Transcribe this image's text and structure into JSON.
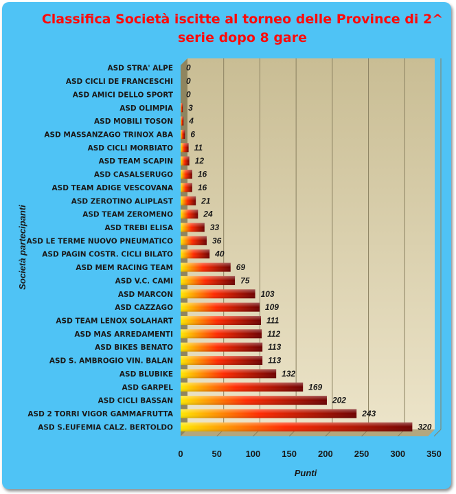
{
  "chart_data": {
    "type": "bar",
    "orientation": "horizontal",
    "title_lines": [
      "Classifica Società iscitte al torneo delle Province di 2^",
      "serie dopo 8 gare"
    ],
    "xlabel": "Punti",
    "ylabel": "Società partecipanti",
    "xlim": [
      0,
      350
    ],
    "xticks": [
      0,
      50,
      100,
      150,
      200,
      250,
      300,
      350
    ],
    "grid": "vertical",
    "data_labels": true,
    "colors": {
      "background": "#4fc3f5",
      "plot_bg_top": "#c9bd94",
      "plot_bg_bottom": "#ece4c9",
      "bar_start": "#ffe800",
      "bar_mid": "#ff2a00",
      "bar_end": "#6e0000",
      "title": "#ff0a0a"
    },
    "categories": [
      "ASD STRA' ALPE",
      "ASD CICLI DE FRANCESCHI",
      "ASD AMICI DELLO SPORT",
      "ASD OLIMPIA",
      "ASD MOBILI TOSON",
      "ASD MASSANZAGO TRINOX ABA",
      "ASD CICLI MORBIATO",
      "ASD TEAM SCAPIN",
      "ASD CASALSERUGO",
      "ASD TEAM ADIGE VESCOVANA",
      "ASD ZEROTINO ALIPLAST",
      "ASD TEAM ZEROMENO",
      "ASD TREBI ELISA",
      "ASD LE TERME NUOVO PNEUMATICO",
      "ASD PAGIN COSTR. CICLI BILATO",
      "ASD MEM RACING TEAM",
      "ASD V.C. CAMI",
      "ASD MARCON",
      "ASD CAZZAGO",
      "ASD TEAM LENOX SOLAHART",
      "ASD MAS ARREDAMENTI",
      "ASD BIKES BENATO",
      "ASD S. AMBROGIO VIN. BALAN",
      "ASD BLUBIKE",
      "ASD GARPEL",
      "ASD CICLI BASSAN",
      "ASD 2 TORRI VIGOR GAMMAFRUTTA",
      "ASD S.EUFEMIA CALZ. BERTOLDO"
    ],
    "values": [
      0,
      0,
      0,
      3,
      4,
      6,
      11,
      12,
      16,
      16,
      21,
      24,
      33,
      36,
      40,
      69,
      75,
      103,
      109,
      111,
      112,
      113,
      113,
      132,
      169,
      202,
      243,
      320
    ]
  }
}
